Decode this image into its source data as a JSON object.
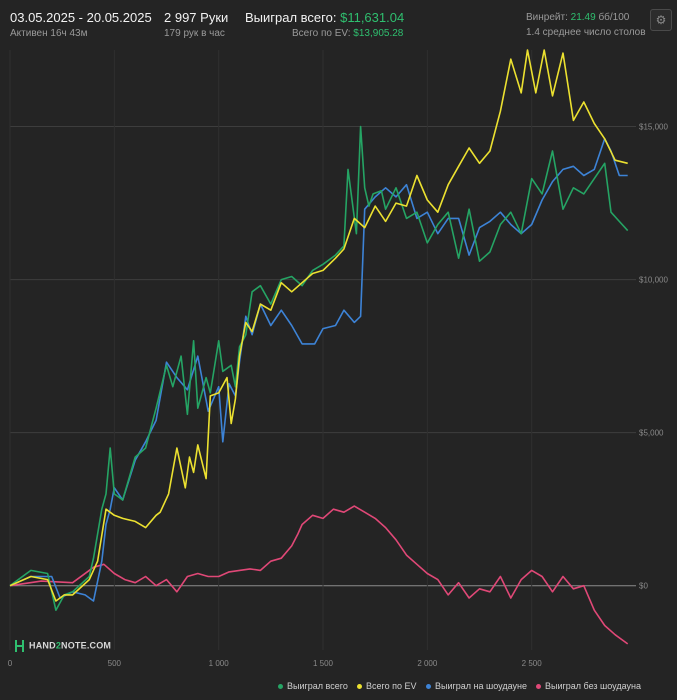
{
  "header": {
    "date_range": "03.05.2025 - 20.05.2025",
    "active": "Активен 16ч 43м",
    "hands": "2 997 Руки",
    "hands_per_hour": "179 рук в час",
    "won_label": "Выиграл всего:",
    "won_value": "$11,631.04",
    "ev_label": "Всего по EV:",
    "ev_value": "$13,905.28",
    "winrate_label": "Винрейт:",
    "winrate_value": "21.49",
    "winrate_unit": "бб/100",
    "avg_tables": "1.4 среднее число столов",
    "settings_icon": "gear-icon"
  },
  "logo": {
    "text_a": "HAND",
    "text_b": "2",
    "text_c": "NOTE.COM"
  },
  "chart_data": {
    "type": "line",
    "x_ticks": [
      0,
      500,
      1000,
      1500,
      2000,
      2500
    ],
    "x_tick_labels": [
      "0",
      "500",
      "1 000",
      "1 500",
      "2 000",
      "2 500"
    ],
    "y_ticks": [
      0,
      5000,
      10000,
      15000
    ],
    "y_tick_labels": [
      "$0",
      "$5,000",
      "$10,000",
      "$15,000"
    ],
    "xlim": [
      0,
      3000
    ],
    "ylim": [
      -2100,
      17500
    ],
    "legend_position": "bottom-right",
    "series": [
      {
        "name": "Выиграл всего",
        "color": "#25a464",
        "x": [
          0,
          100,
          180,
          220,
          260,
          300,
          380,
          400,
          440,
          460,
          480,
          500,
          540,
          600,
          650,
          700,
          750,
          780,
          820,
          850,
          880,
          900,
          940,
          960,
          1000,
          1020,
          1060,
          1080,
          1100,
          1130,
          1160,
          1200,
          1250,
          1300,
          1350,
          1400,
          1450,
          1500,
          1560,
          1600,
          1620,
          1660,
          1680,
          1700,
          1720,
          1740,
          1780,
          1800,
          1850,
          1900,
          1950,
          2000,
          2050,
          2100,
          2150,
          2200,
          2250,
          2300,
          2350,
          2400,
          2450,
          2500,
          2550,
          2600,
          2650,
          2700,
          2750,
          2800,
          2850,
          2880,
          2920,
          2960
        ],
        "y": [
          0,
          500,
          400,
          -800,
          -300,
          -200,
          300,
          900,
          2500,
          3000,
          4500,
          3000,
          2800,
          4200,
          4500,
          5800,
          7200,
          6500,
          7500,
          5600,
          8000,
          5800,
          6800,
          6300,
          8000,
          7000,
          7200,
          6500,
          7800,
          8200,
          9600,
          9800,
          9200,
          10000,
          10100,
          9800,
          10300,
          10500,
          10800,
          11100,
          13600,
          11500,
          15000,
          13000,
          12400,
          12800,
          12900,
          12300,
          13000,
          12000,
          12200,
          11200,
          11800,
          12200,
          10700,
          12300,
          10600,
          10900,
          11800,
          12200,
          11500,
          13300,
          12800,
          14200,
          12300,
          13000,
          12800,
          13300,
          13800,
          12200,
          11900,
          11600
        ]
      },
      {
        "name": "Всего по EV",
        "color": "#ece130",
        "x": [
          0,
          100,
          180,
          220,
          260,
          300,
          380,
          420,
          460,
          500,
          540,
          600,
          650,
          700,
          720,
          760,
          800,
          840,
          860,
          880,
          900,
          940,
          960,
          1000,
          1040,
          1060,
          1080,
          1100,
          1130,
          1160,
          1200,
          1250,
          1300,
          1350,
          1400,
          1450,
          1500,
          1560,
          1600,
          1650,
          1700,
          1750,
          1800,
          1850,
          1900,
          1950,
          2000,
          2050,
          2100,
          2150,
          2200,
          2250,
          2300,
          2350,
          2400,
          2450,
          2480,
          2520,
          2560,
          2600,
          2650,
          2700,
          2750,
          2800,
          2850,
          2900,
          2960
        ],
        "y": [
          0,
          300,
          200,
          -500,
          -300,
          -300,
          200,
          800,
          2500,
          2300,
          2200,
          2100,
          1900,
          2300,
          2400,
          3000,
          4500,
          3200,
          4200,
          3700,
          4600,
          3500,
          6200,
          6300,
          6800,
          5300,
          6100,
          7500,
          8600,
          8300,
          9200,
          9000,
          9900,
          9600,
          9900,
          10200,
          10300,
          10700,
          11000,
          12000,
          11700,
          12400,
          11900,
          12500,
          12400,
          13400,
          12600,
          12200,
          13100,
          13700,
          14300,
          13800,
          14200,
          15500,
          17200,
          16100,
          17500,
          16100,
          17500,
          16000,
          17400,
          15200,
          15800,
          15100,
          14600,
          13900,
          13800
        ]
      },
      {
        "name": "Выиграл на шоудауне",
        "color": "#3d83d6",
        "x": [
          0,
          100,
          200,
          240,
          300,
          360,
          400,
          440,
          460,
          480,
          500,
          540,
          600,
          650,
          700,
          750,
          800,
          850,
          900,
          950,
          1000,
          1020,
          1050,
          1080,
          1100,
          1130,
          1160,
          1200,
          1250,
          1300,
          1350,
          1400,
          1460,
          1500,
          1560,
          1600,
          1650,
          1680,
          1700,
          1750,
          1800,
          1850,
          1900,
          1950,
          2000,
          2050,
          2100,
          2150,
          2200,
          2250,
          2300,
          2350,
          2400,
          2450,
          2500,
          2550,
          2600,
          2650,
          2700,
          2750,
          2800,
          2850,
          2880,
          2920,
          2960
        ],
        "y": [
          0,
          300,
          300,
          -400,
          -200,
          -300,
          -500,
          800,
          2000,
          2500,
          3200,
          2800,
          4100,
          4700,
          5400,
          7300,
          6800,
          6400,
          7500,
          5700,
          6500,
          4700,
          6600,
          6200,
          7300,
          8800,
          8200,
          9200,
          8500,
          9000,
          8500,
          7900,
          7900,
          8400,
          8500,
          9000,
          8600,
          8800,
          12300,
          12700,
          13000,
          12700,
          13100,
          12000,
          12200,
          11500,
          12000,
          12000,
          10800,
          11700,
          11900,
          12200,
          11800,
          11500,
          11800,
          12600,
          13200,
          13600,
          13700,
          13400,
          13600,
          14600,
          14200,
          13400,
          13400
        ]
      },
      {
        "name": "Выиграл без шоудауна",
        "color": "#e04877",
        "x": [
          0,
          150,
          300,
          400,
          450,
          500,
          550,
          600,
          650,
          700,
          750,
          800,
          850,
          900,
          950,
          1000,
          1050,
          1100,
          1150,
          1200,
          1250,
          1300,
          1350,
          1380,
          1400,
          1450,
          1500,
          1550,
          1600,
          1650,
          1700,
          1750,
          1800,
          1850,
          1900,
          1950,
          2000,
          2050,
          2100,
          2150,
          2200,
          2250,
          2300,
          2350,
          2400,
          2450,
          2500,
          2550,
          2600,
          2650,
          2700,
          2750,
          2800,
          2850,
          2900,
          2960
        ],
        "y": [
          0,
          150,
          100,
          600,
          700,
          400,
          200,
          100,
          300,
          0,
          200,
          -200,
          300,
          400,
          300,
          300,
          450,
          500,
          550,
          500,
          800,
          900,
          1300,
          1700,
          2000,
          2300,
          2200,
          2500,
          2400,
          2600,
          2400,
          2200,
          1900,
          1500,
          1000,
          700,
          400,
          200,
          -300,
          100,
          -400,
          -100,
          -200,
          300,
          -400,
          200,
          500,
          300,
          -200,
          300,
          -100,
          0,
          -800,
          -1300,
          -1600,
          -1900
        ]
      }
    ]
  }
}
